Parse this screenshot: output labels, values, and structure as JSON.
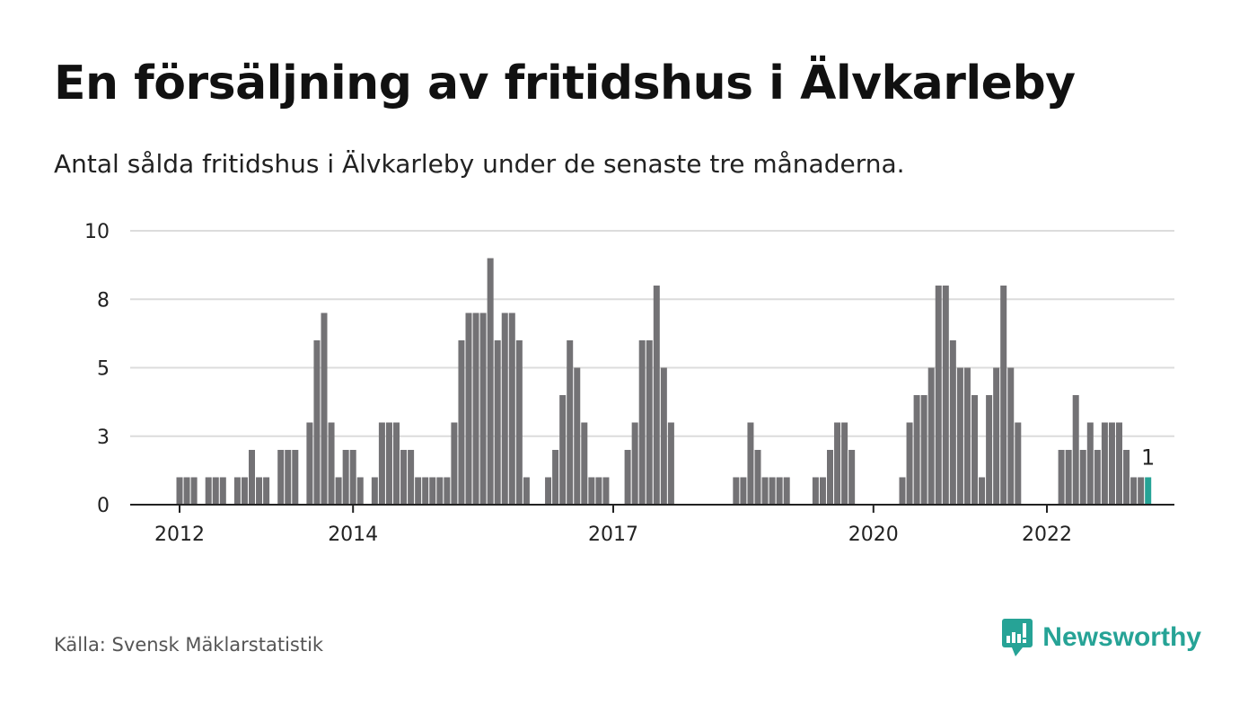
{
  "title": "En försäljning av fritidshus i Älvkarleby",
  "subtitle": "Antal sålda fritidshus i Älvkarleby under de senaste tre månaderna.",
  "source": "Källa: Svensk Mäklarstatistik",
  "brand": {
    "name": "Newsworthy",
    "icon": "newsworthy-logo-icon"
  },
  "colors": {
    "bar": "#737275",
    "highlight": "#26a396",
    "grid": "#dcdcdc",
    "axis": "#222222",
    "text": "#111111"
  },
  "chart_data": {
    "type": "bar",
    "ylim": [
      0,
      10
    ],
    "y_ticks": [
      {
        "value": 0,
        "label": "0"
      },
      {
        "value": 2.5,
        "label": "3"
      },
      {
        "value": 5,
        "label": "5"
      },
      {
        "value": 7.5,
        "label": "8"
      },
      {
        "value": 10,
        "label": "10"
      }
    ],
    "x_ticks": [
      {
        "label": "2012",
        "index": 0
      },
      {
        "label": "2014",
        "index": 24
      },
      {
        "label": "2017",
        "index": 60
      },
      {
        "label": "2020",
        "index": 96
      },
      {
        "label": "2022",
        "index": 120
      }
    ],
    "grid": true,
    "highlight_last": true,
    "last_label": "1",
    "values": [
      1,
      1,
      1,
      0,
      1,
      1,
      1,
      0,
      1,
      1,
      2,
      1,
      1,
      0,
      2,
      2,
      2,
      0,
      3,
      6,
      7,
      3,
      1,
      2,
      2,
      1,
      0,
      1,
      3,
      3,
      3,
      2,
      2,
      1,
      1,
      1,
      1,
      1,
      3,
      6,
      7,
      7,
      7,
      9,
      6,
      7,
      7,
      6,
      1,
      0,
      0,
      1,
      2,
      4,
      6,
      5,
      3,
      1,
      1,
      1,
      0,
      0,
      2,
      3,
      6,
      6,
      8,
      5,
      3,
      0,
      0,
      0,
      0,
      0,
      0,
      0,
      0,
      1,
      1,
      3,
      2,
      1,
      1,
      1,
      1,
      0,
      0,
      0,
      1,
      1,
      2,
      3,
      3,
      2,
      0,
      0,
      0,
      0,
      0,
      0,
      1,
      3,
      4,
      4,
      5,
      8,
      8,
      6,
      5,
      5,
      4,
      1,
      4,
      5,
      8,
      5,
      3,
      0,
      0,
      0,
      0,
      0,
      2,
      2,
      4,
      2,
      3,
      2,
      3,
      3,
      3,
      2,
      1,
      1,
      1
    ]
  }
}
